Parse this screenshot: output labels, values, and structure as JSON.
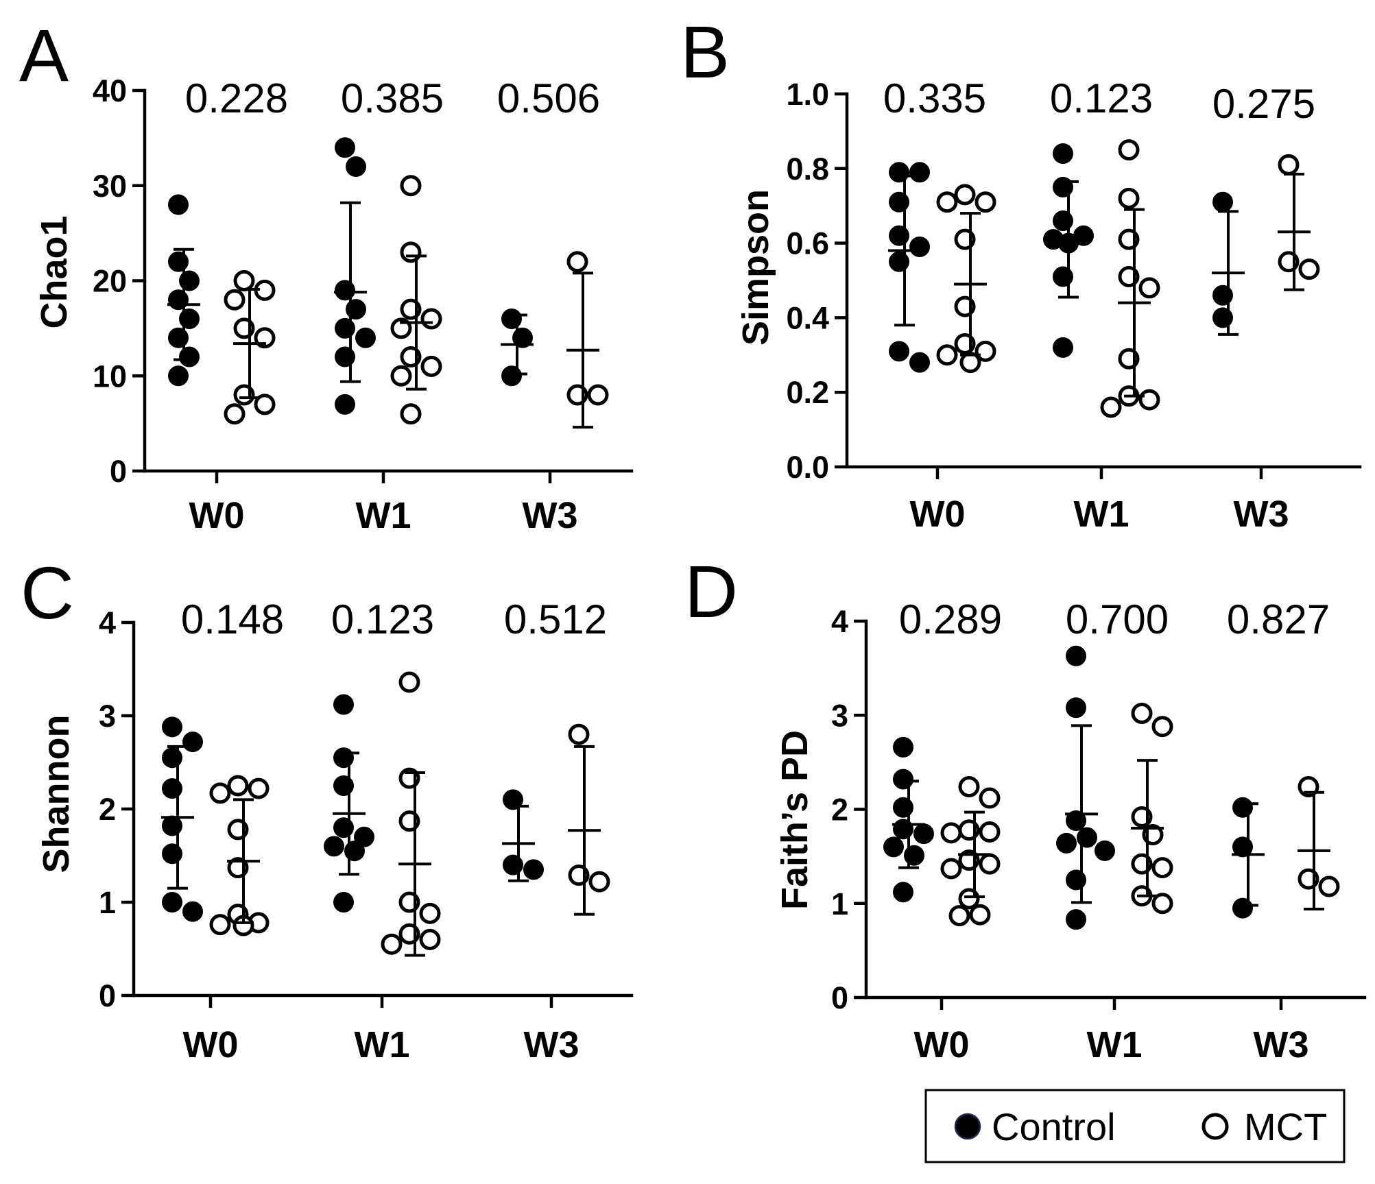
{
  "chart_data": [
    {
      "panel": "A",
      "type": "scatter",
      "ylabel": "Chao1",
      "ylim": [
        0,
        40
      ],
      "yticks": [
        0,
        10,
        20,
        30,
        40
      ],
      "ytick_labels": [
        "0",
        "10",
        "20",
        "30",
        "40"
      ],
      "categories": [
        "W0",
        "W1",
        "W3"
      ],
      "p_values": [
        "0.228",
        "0.385",
        "0.506"
      ],
      "series": [
        {
          "name": "Control",
          "fill": "#000000",
          "groups": [
            {
              "values": [
                28,
                22,
                20,
                18,
                16,
                14,
                12,
                10
              ],
              "mean": 17.5,
              "sd": 5.8
            },
            {
              "values": [
                34,
                32,
                19,
                17,
                15,
                14,
                12,
                7
              ],
              "mean": 18.8,
              "sd": 9.4
            },
            {
              "values": [
                16,
                14,
                10
              ],
              "mean": 13.3,
              "sd": 3.1
            }
          ]
        },
        {
          "name": "MCT",
          "fill": "#ffffff",
          "groups": [
            {
              "values": [
                20,
                19,
                18,
                15,
                14,
                8,
                7,
                6
              ],
              "mean": 13.4,
              "sd": 5.7
            },
            {
              "values": [
                30,
                23,
                17,
                16,
                15,
                12,
                11,
                10,
                6
              ],
              "mean": 15.6,
              "sd": 7.0
            },
            {
              "values": [
                22,
                8,
                8
              ],
              "mean": 12.7,
              "sd": 8.1
            }
          ]
        }
      ]
    },
    {
      "panel": "B",
      "type": "scatter",
      "ylabel": "Simpson",
      "ylim": [
        0,
        1.0
      ],
      "yticks": [
        0,
        0.2,
        0.4,
        0.6,
        0.8,
        1.0
      ],
      "ytick_labels": [
        "0.0",
        "0.2",
        "0.4",
        "0.6",
        "0.8",
        "1.0"
      ],
      "categories": [
        "W0",
        "W1",
        "W3"
      ],
      "p_values": [
        "0.335",
        "0.123",
        "0.275"
      ],
      "series": [
        {
          "name": "Control",
          "fill": "#000000",
          "groups": [
            {
              "values": [
                0.79,
                0.79,
                0.71,
                0.62,
                0.59,
                0.55,
                0.31,
                0.28
              ],
              "mean": 0.58,
              "sd": 0.2
            },
            {
              "values": [
                0.84,
                0.75,
                0.66,
                0.62,
                0.61,
                0.6,
                0.51,
                0.32
              ],
              "mean": 0.61,
              "sd": 0.155
            },
            {
              "values": [
                0.71,
                0.46,
                0.4
              ],
              "mean": 0.52,
              "sd": 0.165
            }
          ]
        },
        {
          "name": "MCT",
          "fill": "#ffffff",
          "groups": [
            {
              "values": [
                0.73,
                0.71,
                0.71,
                0.61,
                0.43,
                0.33,
                0.31,
                0.3,
                0.28
              ],
              "mean": 0.49,
              "sd": 0.19
            },
            {
              "values": [
                0.85,
                0.72,
                0.61,
                0.51,
                0.48,
                0.29,
                0.19,
                0.18,
                0.16
              ],
              "mean": 0.44,
              "sd": 0.25
            },
            {
              "values": [
                0.81,
                0.55,
                0.53
              ],
              "mean": 0.63,
              "sd": 0.155
            }
          ]
        }
      ]
    },
    {
      "panel": "C",
      "type": "scatter",
      "ylabel": "Shannon",
      "ylim": [
        0,
        4
      ],
      "yticks": [
        0,
        1,
        2,
        3,
        4
      ],
      "ytick_labels": [
        "0",
        "1",
        "2",
        "3",
        "4"
      ],
      "categories": [
        "W0",
        "W1",
        "W3"
      ],
      "p_values": [
        "0.148",
        "0.123",
        "0.512"
      ],
      "series": [
        {
          "name": "Control",
          "fill": "#000000",
          "groups": [
            {
              "values": [
                2.88,
                2.72,
                2.55,
                2.22,
                1.82,
                1.52,
                1.0,
                0.9
              ],
              "mean": 1.91,
              "sd": 0.76
            },
            {
              "values": [
                3.12,
                2.55,
                2.25,
                1.8,
                1.7,
                1.6,
                1.55,
                1.0
              ],
              "mean": 1.95,
              "sd": 0.65
            },
            {
              "values": [
                2.1,
                1.4,
                1.35
              ],
              "mean": 1.63,
              "sd": 0.4
            }
          ]
        },
        {
          "name": "MCT",
          "fill": "#ffffff",
          "groups": [
            {
              "values": [
                2.25,
                2.22,
                2.17,
                1.78,
                1.37,
                0.87,
                0.78,
                0.76,
                0.75
              ],
              "mean": 1.44,
              "sd": 0.66
            },
            {
              "values": [
                3.36,
                2.33,
                1.87,
                1.0,
                0.88,
                0.66,
                0.6,
                0.55
              ],
              "mean": 1.41,
              "sd": 0.98
            },
            {
              "values": [
                2.8,
                1.29,
                1.22
              ],
              "mean": 1.77,
              "sd": 0.9
            }
          ]
        }
      ]
    },
    {
      "panel": "D",
      "type": "scatter",
      "ylabel": "Faith’s PD",
      "ylim": [
        0,
        4
      ],
      "yticks": [
        0,
        1,
        2,
        3,
        4
      ],
      "ytick_labels": [
        "0",
        "1",
        "2",
        "3",
        "4"
      ],
      "categories": [
        "W0",
        "W1",
        "W3"
      ],
      "p_values": [
        "0.289",
        "0.700",
        "0.827"
      ],
      "series": [
        {
          "name": "Control",
          "fill": "#000000",
          "groups": [
            {
              "values": [
                2.66,
                2.32,
                2.02,
                1.79,
                1.74,
                1.6,
                1.51,
                1.12
              ],
              "mean": 1.84,
              "sd": 0.46
            },
            {
              "values": [
                3.63,
                3.08,
                1.88,
                1.7,
                1.64,
                1.56,
                1.25,
                0.83
              ],
              "mean": 1.95,
              "sd": 0.94
            },
            {
              "values": [
                2.02,
                1.6,
                0.95
              ],
              "mean": 1.52,
              "sd": 0.54
            }
          ]
        },
        {
          "name": "MCT",
          "fill": "#ffffff",
          "groups": [
            {
              "values": [
                2.24,
                2.12,
                1.78,
                1.76,
                1.75,
                1.46,
                1.42,
                1.37,
                1.05,
                0.88,
                0.87
              ],
              "mean": 1.52,
              "sd": 0.45
            },
            {
              "values": [
                3.02,
                2.88,
                1.92,
                1.73,
                1.42,
                1.38,
                1.08,
                1.0
              ],
              "mean": 1.8,
              "sd": 0.72
            },
            {
              "values": [
                2.24,
                1.26,
                1.18
              ],
              "mean": 1.56,
              "sd": 0.62
            }
          ]
        }
      ]
    }
  ],
  "legend": {
    "placement": "bottom-right",
    "items": [
      {
        "label": "Control",
        "fill": "#000000"
      },
      {
        "label": "MCT",
        "fill": "#ffffff"
      }
    ]
  }
}
